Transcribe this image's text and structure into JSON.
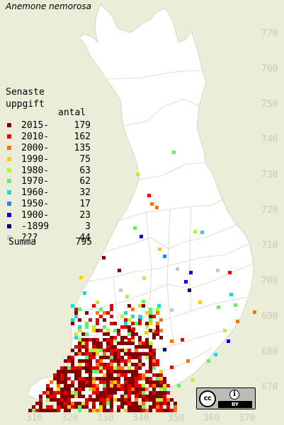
{
  "title": "Anemone nemorosa",
  "legend": {
    "heading": "Senaste\nuppgift",
    "count_heading": "antal",
    "rows": [
      {
        "label": "2015-",
        "count": "179",
        "color": "#800000"
      },
      {
        "label": "2010-",
        "count": "162",
        "color": "#e60000"
      },
      {
        "label": "2000-",
        "count": "135",
        "color": "#ff7300"
      },
      {
        "label": "1990-",
        "count": "75",
        "color": "#ffcc00"
      },
      {
        "label": "1980-",
        "count": "63",
        "color": "#b3f533"
      },
      {
        "label": "1970-",
        "count": "62",
        "color": "#66ee66"
      },
      {
        "label": "1960-",
        "count": "32",
        "color": "#1ad9d9"
      },
      {
        "label": "1950-",
        "count": "17",
        "color": "#1a8cff"
      },
      {
        "label": "1900-",
        "count": "23",
        "color": "#0000e6"
      },
      {
        "label": "-1899",
        "count": "3",
        "color": "#000080"
      },
      {
        "label": "???",
        "count": "44",
        "color": "#c8c8c8"
      }
    ],
    "total_label": "Summa",
    "total_count": "795"
  },
  "axes": {
    "y_labels": [
      "770",
      "760",
      "750",
      "740",
      "730",
      "720",
      "710",
      "700",
      "690",
      "680",
      "670"
    ],
    "x_labels": [
      "310",
      "320",
      "330",
      "340",
      "350",
      "360",
      "370"
    ]
  },
  "license": {
    "cc": "cc",
    "by": "BY",
    "info": "i"
  },
  "colors": {
    "background": "#ebedd9",
    "land": "#ffffff",
    "border": "#c9cbb8",
    "label": "#c9cbb8"
  }
}
